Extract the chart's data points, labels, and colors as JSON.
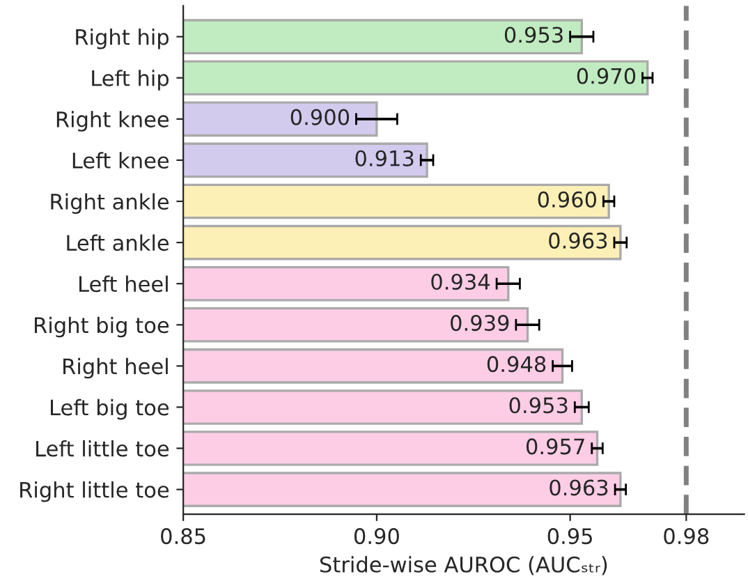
{
  "chart_data": {
    "type": "bar",
    "orientation": "horizontal",
    "xlabel": "Stride-wise AUROC (AUCₛₜᵣ)",
    "categories": [
      "Right hip",
      "Left hip",
      "Right knee",
      "Left knee",
      "Right ankle",
      "Left ankle",
      "Left heel",
      "Right big toe",
      "Right heel",
      "Left big toe",
      "Left little toe",
      "Right little toe"
    ],
    "values": [
      0.953,
      0.97,
      0.9,
      0.913,
      0.96,
      0.963,
      0.934,
      0.939,
      0.948,
      0.953,
      0.957,
      0.963
    ],
    "errors": [
      0.003,
      0.0013,
      0.0053,
      0.0016,
      0.0014,
      0.0016,
      0.003,
      0.003,
      0.0025,
      0.0018,
      0.0014,
      0.0014
    ],
    "colors": [
      "#c1ecc1",
      "#c1ecc1",
      "#d2cbee",
      "#d2cbee",
      "#fdf0b6",
      "#fdf0b6",
      "#fdcde6",
      "#fdcde6",
      "#fdcde6",
      "#fdcde6",
      "#fdcde6",
      "#fdcde6"
    ],
    "value_labels": [
      "0.953",
      "0.970",
      "0.900",
      "0.913",
      "0.960",
      "0.963",
      "0.934",
      "0.939",
      "0.948",
      "0.953",
      "0.957",
      "0.963"
    ],
    "xlim": [
      0.85,
      0.995
    ],
    "xticks": [
      0.85,
      {
        "value": 0.9,
        "label": "0.90"
      },
      0.95,
      0.98
    ],
    "ref_lines": [
      {
        "axis": "x",
        "value": 0.98,
        "color": "#808080",
        "line_style": "dashed"
      }
    ],
    "grid": false
  }
}
